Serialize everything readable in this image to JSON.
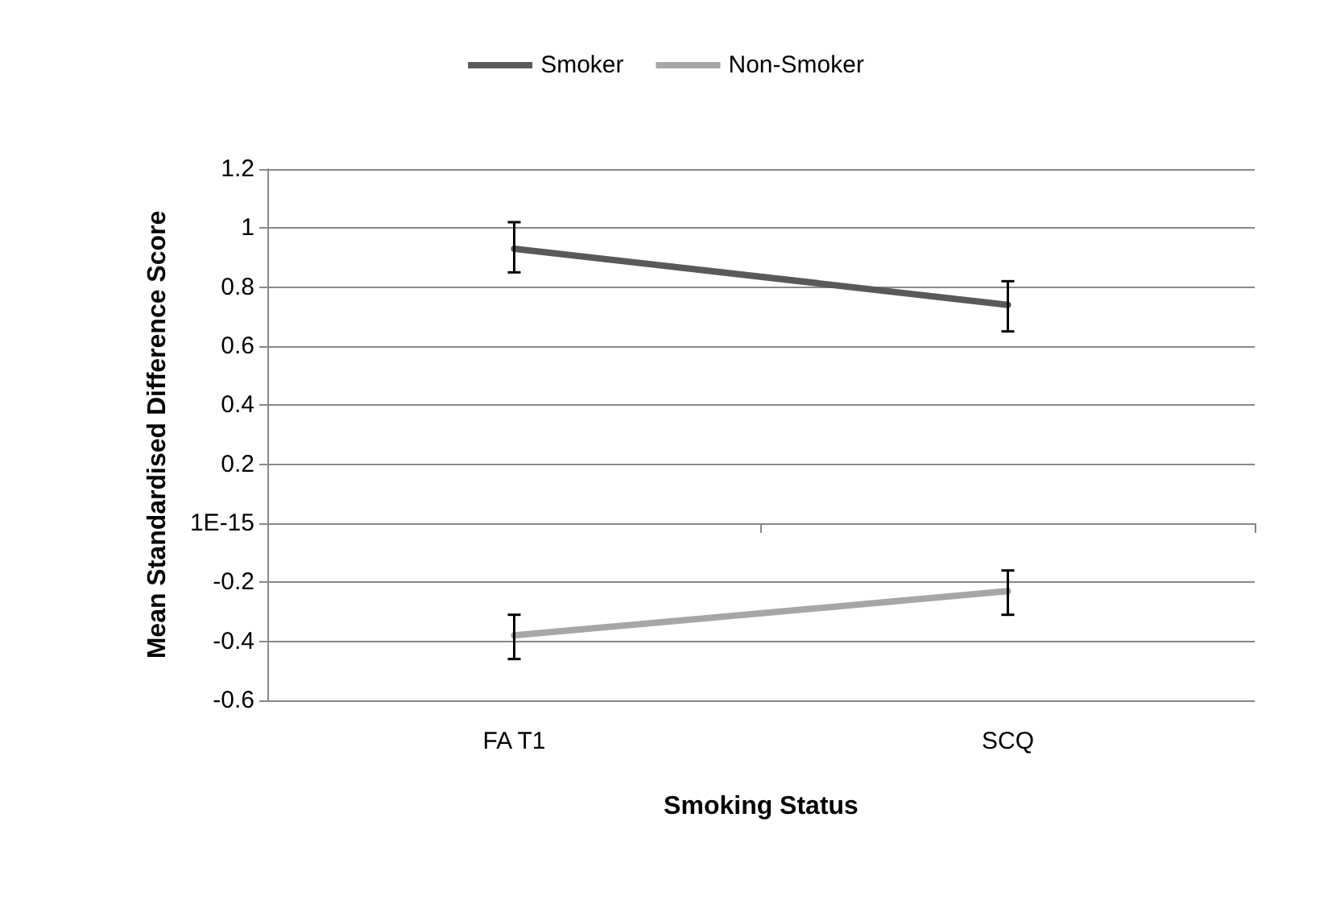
{
  "chart_data": {
    "type": "line",
    "xlabel": "Smoking Status",
    "ylabel": "Mean Standardised Difference Score",
    "categories": [
      "FA T1",
      "SCQ"
    ],
    "series": [
      {
        "name": "Smoker",
        "color": "#595959",
        "values": [
          0.93,
          0.74
        ],
        "errors": [
          [
            0.85,
            1.02
          ],
          [
            0.65,
            0.82
          ]
        ]
      },
      {
        "name": "Non-Smoker",
        "color": "#a6a6a6",
        "values": [
          -0.38,
          -0.23
        ],
        "errors": [
          [
            -0.46,
            -0.31
          ],
          [
            -0.31,
            -0.16
          ]
        ]
      }
    ],
    "ylim": [
      -0.6,
      1.2
    ],
    "yticks": [
      -0.6,
      -0.4,
      -0.2,
      {
        "value": 0,
        "label": "1E-15"
      },
      0.2,
      0.4,
      0.6,
      0.8,
      1,
      1.2
    ],
    "grid": "y",
    "legend": "top",
    "marker": "none",
    "line_style": "solid"
  }
}
